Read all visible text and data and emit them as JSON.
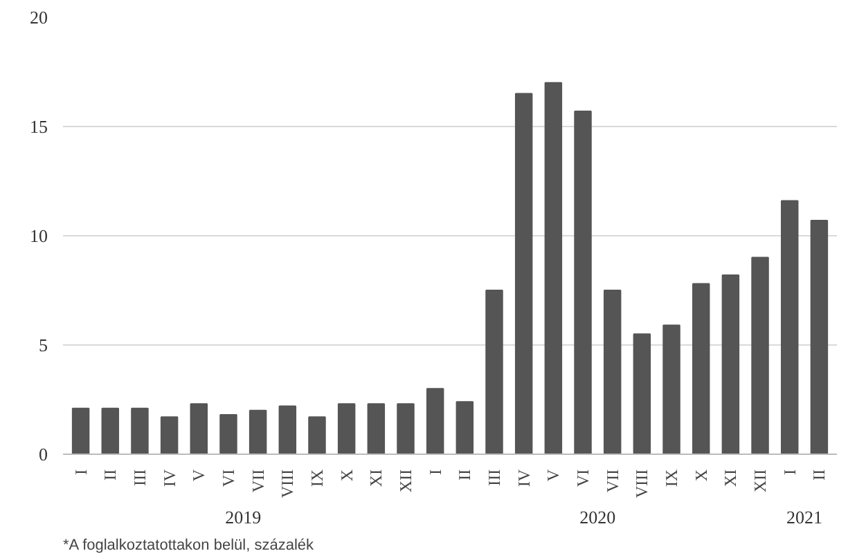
{
  "chart_data": {
    "type": "bar",
    "categories": [
      "I",
      "II",
      "III",
      "IV",
      "V",
      "VI",
      "VII",
      "VIII",
      "IX",
      "X",
      "XI",
      "XII",
      "I",
      "II",
      "III",
      "IV",
      "V",
      "VI",
      "VII",
      "VIII",
      "IX",
      "X",
      "XI",
      "XII",
      "I",
      "II"
    ],
    "values": [
      2.1,
      2.1,
      2.1,
      1.7,
      2.3,
      1.8,
      2.0,
      2.2,
      1.7,
      2.3,
      2.3,
      2.3,
      3.0,
      2.4,
      7.5,
      16.5,
      17.0,
      15.7,
      7.5,
      5.5,
      5.9,
      7.8,
      8.2,
      9.0,
      11.6,
      10.7
    ],
    "color": "#555555",
    "ylim": [
      0,
      20
    ],
    "yticks": [
      0,
      5,
      10,
      15,
      20
    ],
    "grid": "y",
    "annotations": [
      "2019",
      "2020",
      "2021",
      "*A foglalkoztatottakon belül, százalék"
    ]
  }
}
